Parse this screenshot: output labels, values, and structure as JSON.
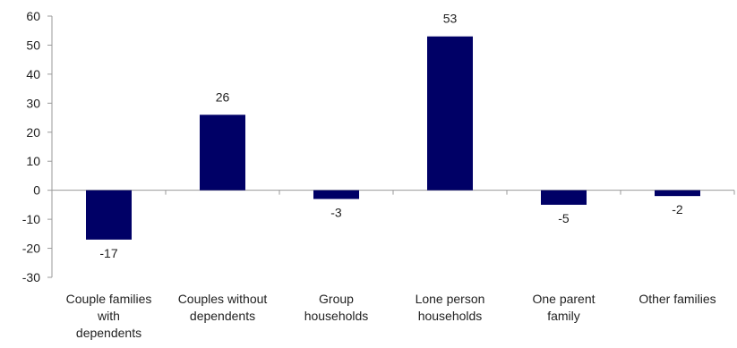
{
  "chart_data": {
    "type": "bar",
    "categories": [
      [
        "Couple families",
        "with",
        "dependents"
      ],
      [
        "Couples without",
        "dependents"
      ],
      [
        "Group",
        "households"
      ],
      [
        "Lone person",
        "households"
      ],
      [
        "One parent",
        "family"
      ],
      [
        "Other families"
      ]
    ],
    "values": [
      -17,
      26,
      -3,
      53,
      -5,
      -2
    ],
    "data_labels": [
      "-17",
      "26",
      "-3",
      "53",
      "-5",
      "-2"
    ],
    "y_ticks": [
      "60",
      "50",
      "40",
      "30",
      "20",
      "10",
      "0",
      "-10",
      "-20",
      "-30"
    ],
    "ylim": [
      -30,
      60
    ],
    "grid": false,
    "bar_color": "#000066",
    "axis_color": "#9a9a9a"
  }
}
